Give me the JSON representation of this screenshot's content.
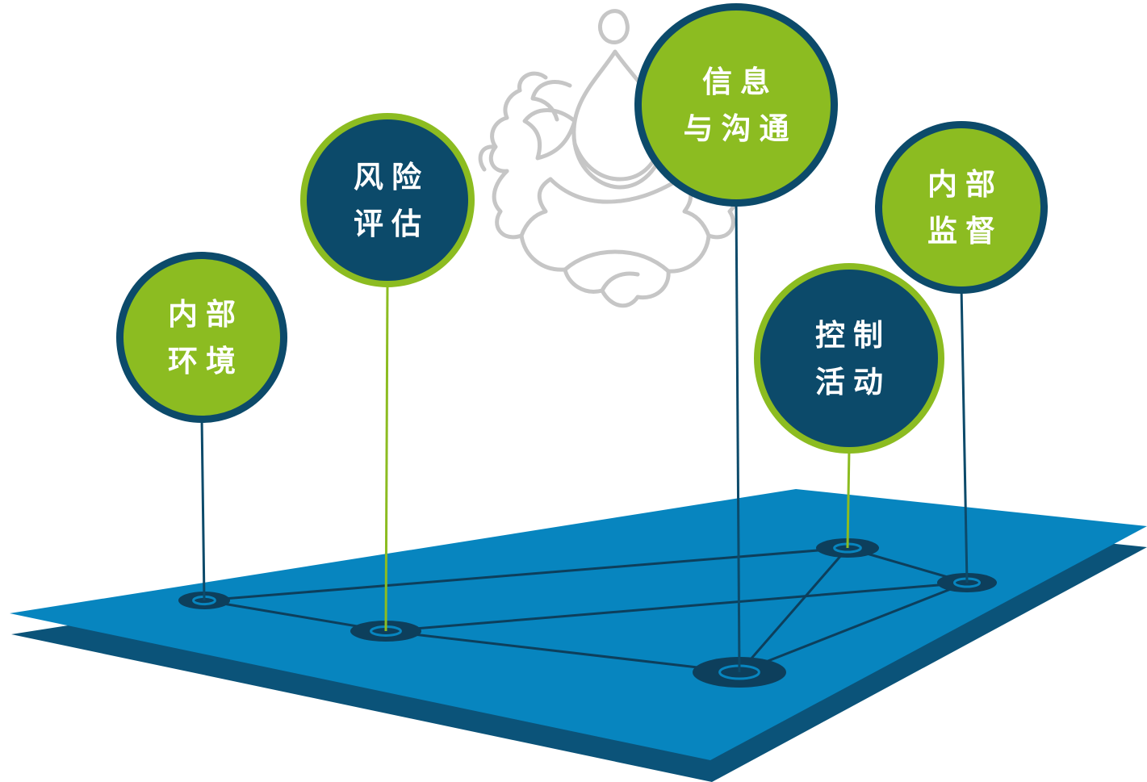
{
  "colors": {
    "green": "#8cbc21",
    "navy": "#0c4a6a",
    "platform_top": "#0785bf",
    "platform_side": "#0b5379",
    "connector_line": "#0d3f5c",
    "lotus_outline": "#c6c6c6"
  },
  "decoration": {
    "icon": "lotus-outline-icon"
  },
  "nodes": [
    {
      "id": "internal-environment",
      "lines": [
        "内部",
        "环境"
      ],
      "fill": "green",
      "stem": "navy"
    },
    {
      "id": "risk-assessment",
      "lines": [
        "风险",
        "评估"
      ],
      "fill": "navy",
      "stem": "green"
    },
    {
      "id": "information-communication",
      "lines": [
        "信息",
        "与沟通"
      ],
      "fill": "green",
      "stem": "navy"
    },
    {
      "id": "control-activities",
      "lines": [
        "控制",
        "活动"
      ],
      "fill": "navy",
      "stem": "green"
    },
    {
      "id": "internal-supervision",
      "lines": [
        "内部",
        "监督"
      ],
      "fill": "green",
      "stem": "navy"
    }
  ],
  "network_links": [
    [
      "internal-environment",
      "risk-assessment"
    ],
    [
      "internal-environment",
      "control-activities"
    ],
    [
      "risk-assessment",
      "internal-supervision"
    ],
    [
      "risk-assessment",
      "information-communication"
    ],
    [
      "information-communication",
      "control-activities"
    ],
    [
      "information-communication",
      "internal-supervision"
    ],
    [
      "control-activities",
      "internal-supervision"
    ]
  ]
}
